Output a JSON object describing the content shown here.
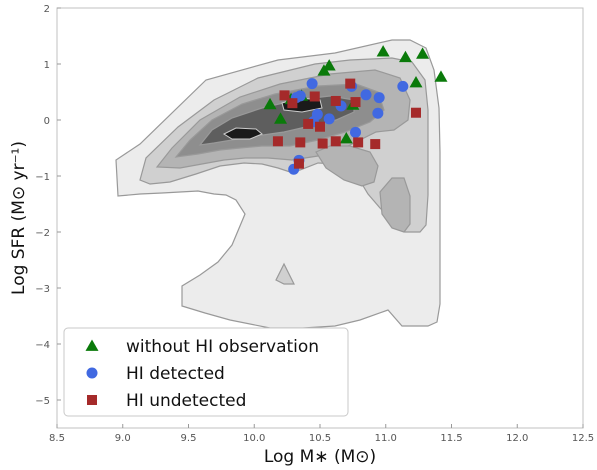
{
  "chart_data": {
    "type": "scatter",
    "xlabel": "Log M∗ (M⊙)",
    "ylabel": "Log SFR (M⊙ yr⁻¹)",
    "xlim": [
      8.5,
      12.5
    ],
    "ylim": [
      -5.5,
      2
    ],
    "x_ticks": [
      "8.5",
      "9.0",
      "9.5",
      "10.0",
      "10.5",
      "11.0",
      "11.5",
      "12.0",
      "12.5"
    ],
    "y_ticks": [
      "2",
      "1",
      "0",
      "−1",
      "−2",
      "−3",
      "−4",
      "−5"
    ],
    "grid": false,
    "legend": "lower-left",
    "background_contours": {
      "levels": 6,
      "colors": [
        "#ececec",
        "#d0d0d0",
        "#b4b4b4",
        "#8e8e8e",
        "#5e5e5e",
        "#1a1a1a"
      ],
      "line_color": "#999999"
    },
    "series": [
      {
        "name": "without HI observation",
        "marker": "triangle",
        "color": "#0a7a0a",
        "points": [
          [
            10.98,
            1.22
          ],
          [
            11.28,
            1.18
          ],
          [
            11.15,
            1.12
          ],
          [
            10.57,
            0.97
          ],
          [
            10.53,
            0.88
          ],
          [
            11.42,
            0.77
          ],
          [
            11.23,
            0.67
          ],
          [
            10.36,
            0.43
          ],
          [
            10.28,
            0.37
          ],
          [
            10.12,
            0.28
          ],
          [
            10.75,
            0.27
          ],
          [
            10.2,
            0.02
          ],
          [
            10.7,
            -0.33
          ]
        ]
      },
      {
        "name": "HI detected",
        "marker": "circle",
        "color": "#4169e1",
        "points": [
          [
            10.44,
            0.65
          ],
          [
            11.13,
            0.6
          ],
          [
            10.35,
            0.43
          ],
          [
            10.32,
            0.4
          ],
          [
            10.85,
            0.45
          ],
          [
            10.95,
            0.4
          ],
          [
            10.74,
            0.6
          ],
          [
            10.66,
            0.25
          ],
          [
            10.48,
            0.1
          ],
          [
            10.57,
            0.02
          ],
          [
            10.45,
            -0.03
          ],
          [
            10.94,
            0.12
          ],
          [
            10.77,
            -0.22
          ],
          [
            10.34,
            -0.72
          ],
          [
            10.3,
            -0.88
          ]
        ]
      },
      {
        "name": "HI undetected",
        "marker": "square",
        "color": "#a52a2a",
        "points": [
          [
            10.73,
            0.65
          ],
          [
            10.23,
            0.44
          ],
          [
            10.46,
            0.42
          ],
          [
            10.29,
            0.3
          ],
          [
            10.62,
            0.34
          ],
          [
            10.77,
            0.32
          ],
          [
            11.23,
            0.13
          ],
          [
            10.5,
            -0.12
          ],
          [
            10.41,
            -0.07
          ],
          [
            10.18,
            -0.38
          ],
          [
            10.35,
            -0.4
          ],
          [
            10.52,
            -0.42
          ],
          [
            10.62,
            -0.38
          ],
          [
            10.79,
            -0.4
          ],
          [
            10.92,
            -0.43
          ],
          [
            10.34,
            -0.78
          ]
        ]
      }
    ]
  }
}
